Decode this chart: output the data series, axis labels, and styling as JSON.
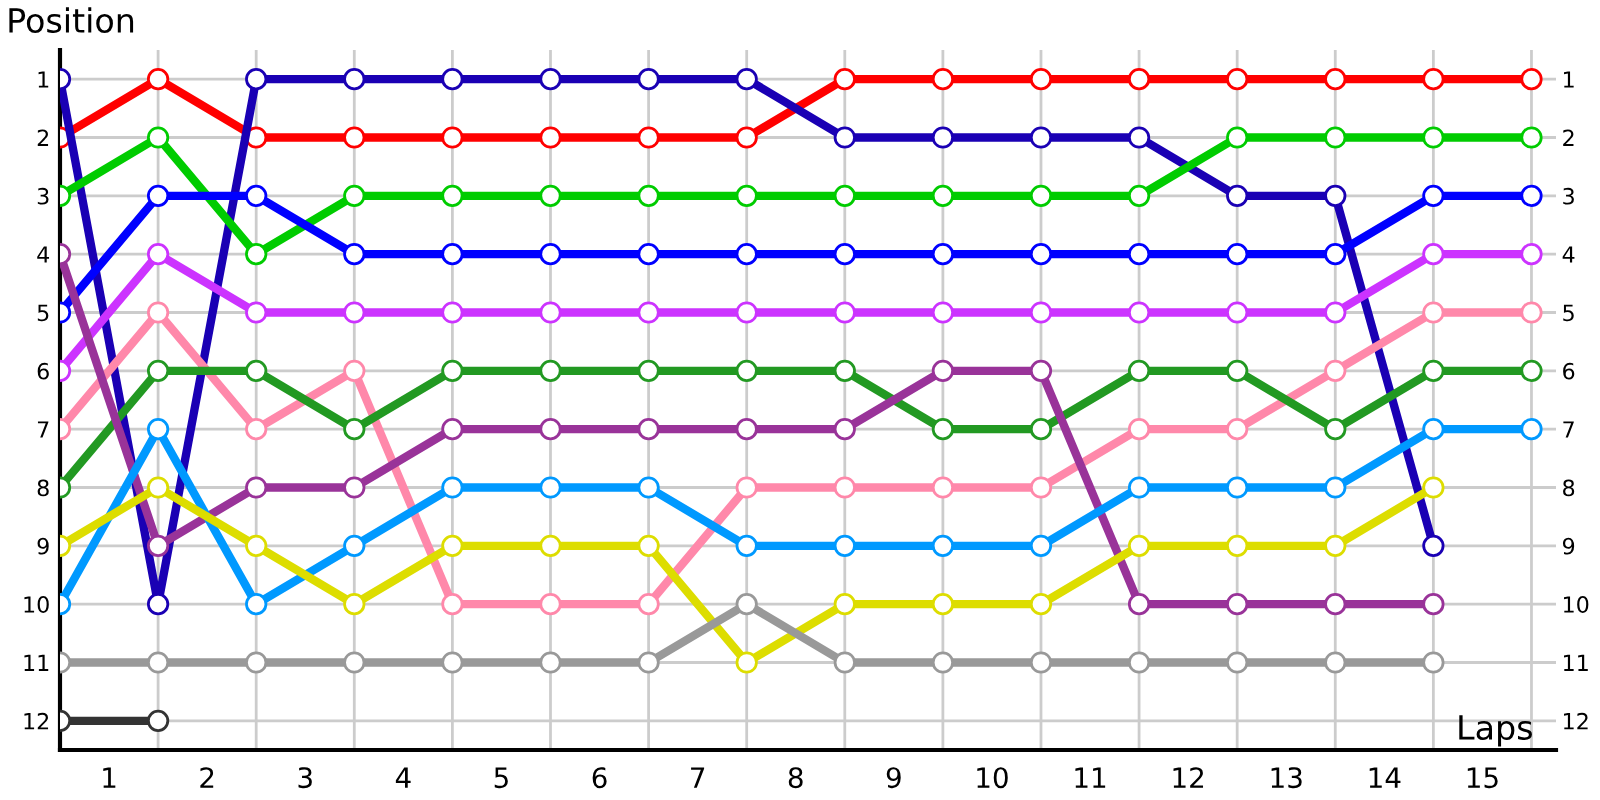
{
  "chart_data": {
    "type": "line",
    "xlabel": "Laps",
    "ylabel": "Position",
    "x": [
      0,
      1,
      2,
      3,
      4,
      5,
      6,
      7,
      8,
      9,
      10,
      11,
      12,
      13,
      14,
      15
    ],
    "xlim": [
      0,
      15.25
    ],
    "xticks": [
      {
        "value": 0.5,
        "label": "1"
      },
      {
        "value": 1.5,
        "label": "2"
      },
      {
        "value": 2.5,
        "label": "3"
      },
      {
        "value": 3.5,
        "label": "4"
      },
      {
        "value": 4.5,
        "label": "5"
      },
      {
        "value": 5.5,
        "label": "6"
      },
      {
        "value": 6.5,
        "label": "7"
      },
      {
        "value": 7.5,
        "label": "8"
      },
      {
        "value": 8.5,
        "label": "9"
      },
      {
        "value": 9.5,
        "label": "10"
      },
      {
        "value": 10.5,
        "label": "11"
      },
      {
        "value": 11.5,
        "label": "12"
      },
      {
        "value": 12.5,
        "label": "13"
      },
      {
        "value": 13.5,
        "label": "14"
      },
      {
        "value": 14.5,
        "label": "15"
      }
    ],
    "ylim": [
      12.5,
      0.5
    ],
    "yticks": [
      1,
      2,
      3,
      4,
      5,
      6,
      7,
      8,
      9,
      10,
      11,
      12
    ],
    "y2lim": [
      12.5,
      0.5
    ],
    "y2ticks": [
      1,
      2,
      3,
      4,
      5,
      6,
      7,
      8,
      9,
      10,
      11,
      12
    ],
    "grid": true,
    "legend": false,
    "marker": "circle",
    "line_style": "solid",
    "series": [
      {
        "color": "#ff0000",
        "values": [
          2,
          1,
          2,
          2,
          2,
          2,
          2,
          2,
          1,
          1,
          1,
          1,
          1,
          1,
          1,
          1
        ]
      },
      {
        "color": "#1a00b4",
        "values": [
          1,
          10,
          1,
          1,
          1,
          1,
          1,
          1,
          2,
          2,
          2,
          2,
          3,
          3,
          9,
          null
        ]
      },
      {
        "color": "#00cc00",
        "values": [
          3,
          2,
          4,
          3,
          3,
          3,
          3,
          3,
          3,
          3,
          3,
          3,
          2,
          2,
          2,
          2
        ]
      },
      {
        "color": "#0000ff",
        "values": [
          5,
          3,
          3,
          4,
          4,
          4,
          4,
          4,
          4,
          4,
          4,
          4,
          4,
          4,
          3,
          3
        ]
      },
      {
        "color": "#cc33ff",
        "values": [
          6,
          4,
          5,
          5,
          5,
          5,
          5,
          5,
          5,
          5,
          5,
          5,
          5,
          5,
          4,
          4
        ]
      },
      {
        "color": "#ff88aa",
        "values": [
          7,
          5,
          7,
          6,
          10,
          10,
          10,
          8,
          8,
          8,
          8,
          7,
          7,
          6,
          5,
          5
        ]
      },
      {
        "color": "#229922",
        "values": [
          8,
          6,
          6,
          7,
          6,
          6,
          6,
          6,
          6,
          7,
          7,
          6,
          6,
          7,
          6,
          6
        ]
      },
      {
        "color": "#993399",
        "values": [
          4,
          9,
          8,
          8,
          7,
          7,
          7,
          7,
          7,
          6,
          6,
          10,
          10,
          10,
          10,
          null
        ]
      },
      {
        "color": "#0099ff",
        "values": [
          10,
          7,
          10,
          9,
          8,
          8,
          8,
          9,
          9,
          9,
          9,
          8,
          8,
          8,
          7,
          7
        ]
      },
      {
        "color": "#dddd00",
        "values": [
          9,
          8,
          9,
          10,
          9,
          9,
          9,
          11,
          10,
          10,
          10,
          9,
          9,
          9,
          8,
          null
        ]
      },
      {
        "color": "#999999",
        "values": [
          11,
          11,
          11,
          11,
          11,
          11,
          11,
          10,
          11,
          11,
          11,
          11,
          11,
          11,
          11,
          null
        ]
      },
      {
        "color": "#333333",
        "values": [
          12,
          12,
          null,
          null,
          null,
          null,
          null,
          null,
          null,
          null,
          null,
          null,
          null,
          null,
          null,
          null
        ]
      }
    ]
  }
}
